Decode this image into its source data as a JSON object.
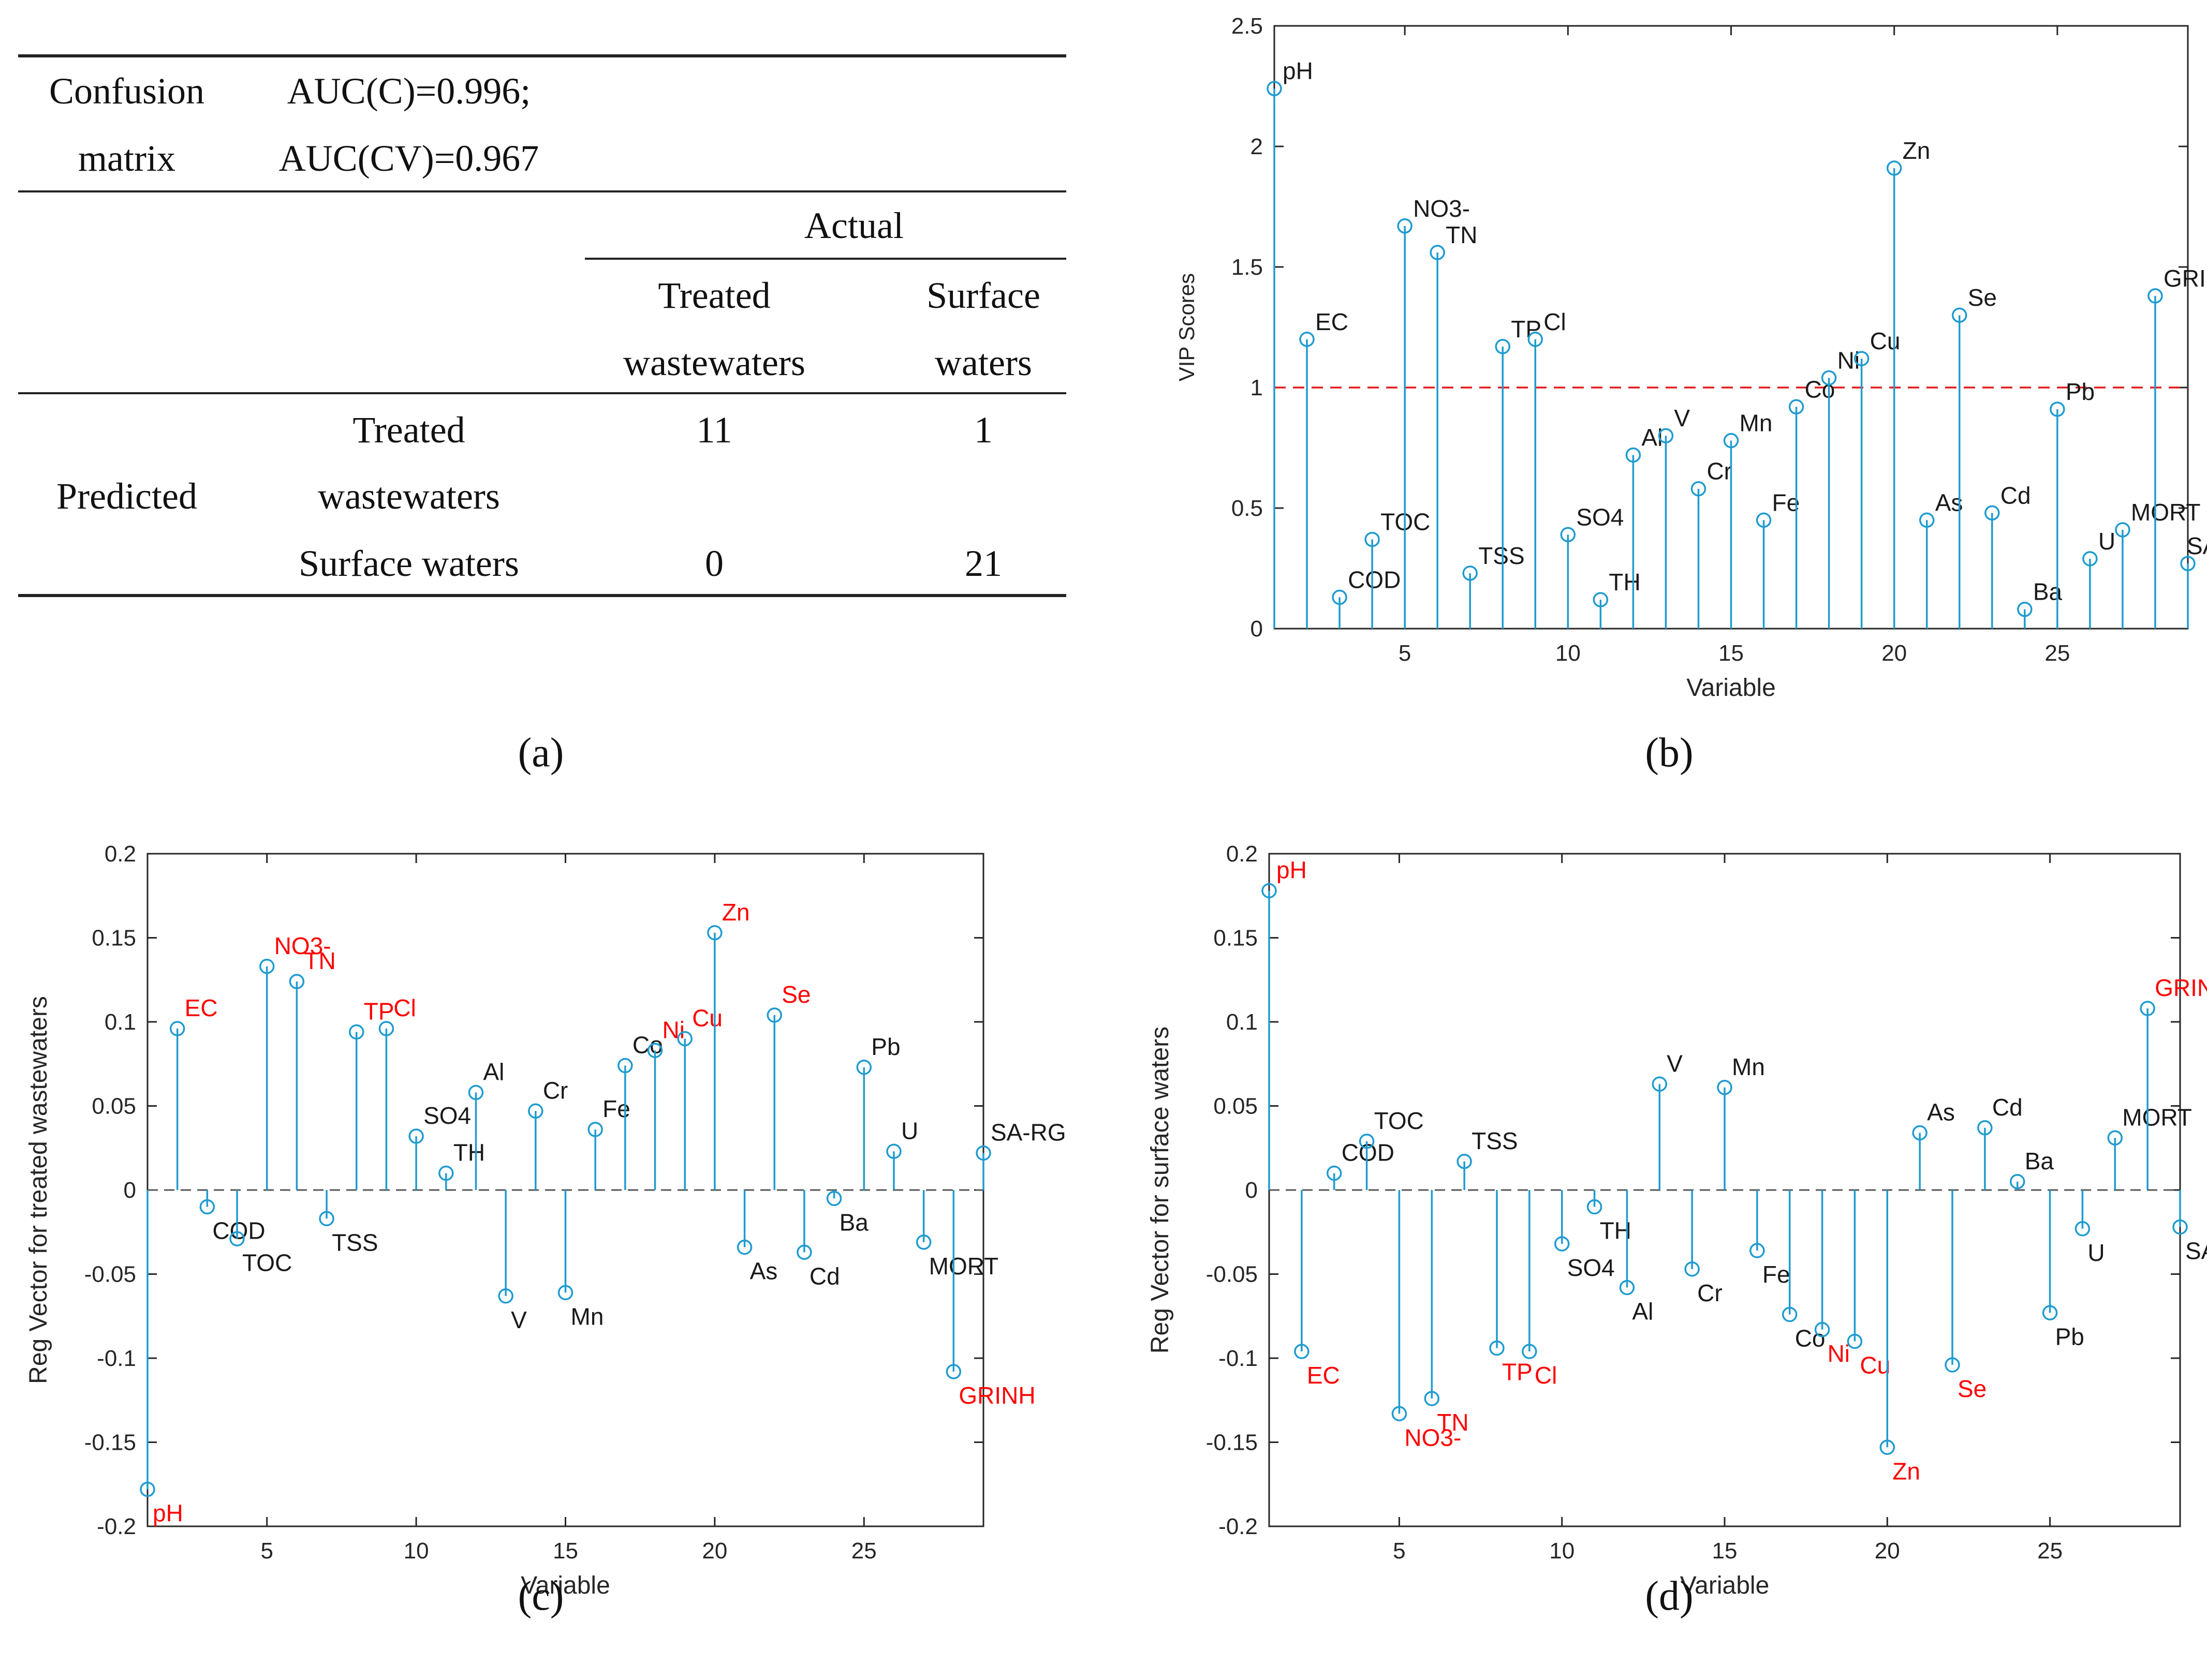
{
  "panel_a": {
    "caption": "(a)",
    "header_left_1": "Confusion",
    "header_left_2": "matrix",
    "auc_c": "AUC(C)=0.996;",
    "auc_cv": "AUC(CV)=0.967",
    "actual_label": "Actual",
    "col1_line1": "Treated",
    "col1_line2": "wastewaters",
    "col2_line1": "Surface",
    "col2_line2": "waters",
    "predicted_label": "Predicted",
    "row1_line1": "Treated",
    "row1_line2": "wastewaters",
    "row2_label": "Surface waters",
    "cell_r1c1": "11",
    "cell_r1c2": "1",
    "cell_r2c1": "0",
    "cell_r2c2": "21"
  },
  "captions": {
    "b": "(b)",
    "c": "(c)",
    "d": "(d)"
  },
  "colors": {
    "stem": "#1f9bd0",
    "highlight": "#ff0000",
    "threshold": "#e31a1c",
    "label": "#1a1a1a"
  },
  "chart_data": [
    {
      "id": "b",
      "type": "stem",
      "xlabel": "Variable",
      "ylabel": "VIP Scores",
      "xlim": [
        1,
        29
      ],
      "ylim": [
        0,
        2.5
      ],
      "xticks": [
        5,
        10,
        15,
        20,
        25
      ],
      "yticks": [
        0,
        0.5,
        1,
        1.5,
        2,
        2.5
      ],
      "threshold": 1,
      "x": [
        1,
        2,
        3,
        4,
        5,
        6,
        7,
        8,
        9,
        10,
        11,
        12,
        13,
        14,
        15,
        16,
        17,
        18,
        19,
        20,
        21,
        22,
        23,
        24,
        25,
        26,
        27,
        28,
        29
      ],
      "labels": [
        "pH",
        "EC",
        "COD",
        "TOC",
        "NO3-",
        "TN",
        "TSS",
        "TP",
        "Cl",
        "SO4",
        "TH",
        "Al",
        "V",
        "Cr",
        "Mn",
        "Fe",
        "Co",
        "Ni",
        "Cu",
        "Zn",
        "As",
        "Se",
        "Cd",
        "Ba",
        "Pb",
        "U",
        "MORT",
        "GRINH",
        "SA-RG"
      ],
      "values": [
        2.24,
        1.2,
        0.13,
        0.37,
        1.67,
        1.56,
        0.23,
        1.17,
        1.2,
        0.39,
        0.12,
        0.72,
        0.8,
        0.58,
        0.78,
        0.45,
        0.92,
        1.04,
        1.12,
        1.91,
        0.45,
        1.3,
        0.48,
        0.08,
        0.91,
        0.29,
        0.41,
        1.38,
        0.27
      ],
      "highlight": []
    },
    {
      "id": "c",
      "type": "stem",
      "xlabel": "Variable",
      "ylabel": "Reg Vector for treated wastewaters",
      "xlim": [
        1,
        29
      ],
      "ylim": [
        -0.2,
        0.2
      ],
      "xticks": [
        5,
        10,
        15,
        20,
        25
      ],
      "yticks": [
        -0.2,
        -0.15,
        -0.1,
        -0.05,
        0,
        0.05,
        0.1,
        0.15,
        0.2
      ],
      "threshold": 0,
      "x": [
        1,
        2,
        3,
        4,
        5,
        6,
        7,
        8,
        9,
        10,
        11,
        12,
        13,
        14,
        15,
        16,
        17,
        18,
        19,
        20,
        21,
        22,
        23,
        24,
        25,
        26,
        27,
        28,
        29
      ],
      "labels": [
        "pH",
        "EC",
        "COD",
        "TOC",
        "NO3-",
        "TN",
        "TSS",
        "TP",
        "Cl",
        "SO4",
        "TH",
        "Al",
        "V",
        "Cr",
        "Mn",
        "Fe",
        "Co",
        "Ni",
        "Cu",
        "Zn",
        "As",
        "Se",
        "Cd",
        "Ba",
        "Pb",
        "U",
        "MORT",
        "GRINH",
        "SA-RG"
      ],
      "values": [
        -0.178,
        0.096,
        -0.01,
        -0.029,
        0.133,
        0.124,
        -0.017,
        0.094,
        0.096,
        0.032,
        0.01,
        0.058,
        -0.063,
        0.047,
        -0.061,
        0.036,
        0.074,
        0.083,
        0.09,
        0.153,
        -0.034,
        0.104,
        -0.037,
        -0.005,
        0.073,
        0.023,
        -0.031,
        -0.108,
        0.022
      ],
      "highlight": [
        "pH",
        "EC",
        "NO3-",
        "TN",
        "TP",
        "Cl",
        "Ni",
        "Cu",
        "Zn",
        "Se",
        "GRINH"
      ]
    },
    {
      "id": "d",
      "type": "stem",
      "xlabel": "Variable",
      "ylabel": "Reg Vector for surface waters",
      "xlim": [
        1,
        29
      ],
      "ylim": [
        -0.2,
        0.2
      ],
      "xticks": [
        5,
        10,
        15,
        20,
        25
      ],
      "yticks": [
        -0.2,
        -0.15,
        -0.1,
        -0.05,
        0,
        0.05,
        0.1,
        0.15,
        0.2
      ],
      "threshold": 0,
      "x": [
        1,
        2,
        3,
        4,
        5,
        6,
        7,
        8,
        9,
        10,
        11,
        12,
        13,
        14,
        15,
        16,
        17,
        18,
        19,
        20,
        21,
        22,
        23,
        24,
        25,
        26,
        27,
        28,
        29
      ],
      "labels": [
        "pH",
        "EC",
        "COD",
        "TOC",
        "NO3-",
        "TN",
        "TSS",
        "TP",
        "Cl",
        "SO4",
        "TH",
        "Al",
        "V",
        "Cr",
        "Mn",
        "Fe",
        "Co",
        "Ni",
        "Cu",
        "Zn",
        "As",
        "Se",
        "Cd",
        "Ba",
        "Pb",
        "U",
        "MORT",
        "GRINH",
        "SA-RG"
      ],
      "values": [
        0.178,
        -0.096,
        0.01,
        0.029,
        -0.133,
        -0.124,
        0.017,
        -0.094,
        -0.096,
        -0.032,
        -0.01,
        -0.058,
        0.063,
        -0.047,
        0.061,
        -0.036,
        -0.074,
        -0.083,
        -0.09,
        -0.153,
        0.034,
        -0.104,
        0.037,
        0.005,
        -0.073,
        -0.023,
        0.031,
        0.108,
        -0.022
      ],
      "highlight": [
        "pH",
        "EC",
        "NO3-",
        "TN",
        "TP",
        "Cl",
        "Ni",
        "Cu",
        "Zn",
        "Se",
        "GRINH"
      ]
    }
  ]
}
